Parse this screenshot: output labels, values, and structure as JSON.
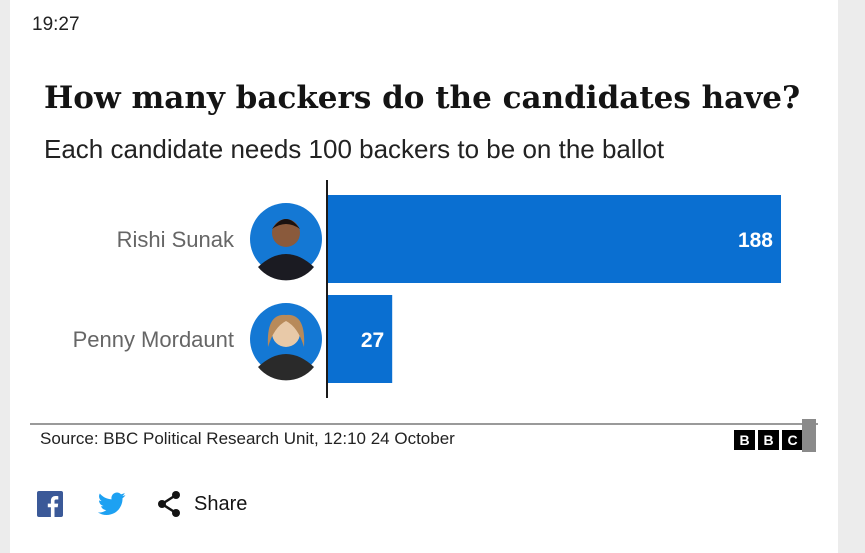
{
  "status_bar": {
    "time": "19:27"
  },
  "chart_data": {
    "type": "bar",
    "orientation": "horizontal",
    "title": "How many backers do the candidates have?",
    "subtitle": "Each candidate needs 100 backers to be on the ballot",
    "categories": [
      "Rishi Sunak",
      "Penny Mordaunt"
    ],
    "values": [
      188,
      27
    ],
    "data_labels": [
      "188",
      "27"
    ],
    "xlim": [
      0,
      188
    ],
    "grid": false,
    "colors": {
      "bar": "#0a6fd1",
      "label": "#ffffff",
      "axis": "#1a1a1a"
    },
    "source": "Source: BBC Political Research Unit, 12:10 24 October"
  },
  "logo": {
    "letters": [
      "B",
      "B",
      "C"
    ]
  },
  "share": {
    "facebook_icon": "facebook-icon",
    "twitter_icon": "twitter-icon",
    "share_icon": "share-icon",
    "share_label": "Share"
  },
  "colors": {
    "facebook": "#3b5998",
    "twitter": "#1da1f2"
  }
}
